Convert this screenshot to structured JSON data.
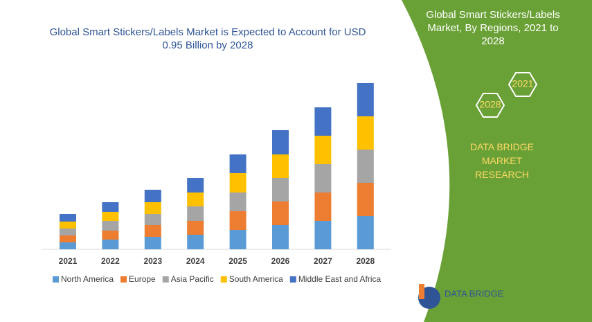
{
  "chart_data": {
    "type": "bar",
    "stacked": true,
    "title": "Global Smart Stickers/Labels Market is Expected to Account for USD 0.95 Billion by 2028",
    "categories": [
      "2021",
      "2022",
      "2023",
      "2024",
      "2025",
      "2026",
      "2027",
      "2028"
    ],
    "series": [
      {
        "name": "North America",
        "color": "#5b9bd5",
        "values": [
          10,
          14,
          18,
          21,
          28,
          35,
          41,
          48
        ]
      },
      {
        "name": "Europe",
        "color": "#ed7d31",
        "values": [
          10,
          13,
          17,
          20,
          27,
          34,
          41,
          48
        ]
      },
      {
        "name": "Asia Pacific",
        "color": "#a5a5a5",
        "values": [
          10,
          14,
          16,
          21,
          27,
          34,
          41,
          48
        ]
      },
      {
        "name": "South America",
        "color": "#ffc000",
        "values": [
          10,
          13,
          17,
          20,
          28,
          34,
          41,
          48
        ]
      },
      {
        "name": "Middle East and Africa",
        "color": "#4472c4",
        "values": [
          11,
          14,
          18,
          21,
          27,
          35,
          41,
          48
        ]
      }
    ],
    "ylim": [
      0,
      240
    ]
  },
  "panel": {
    "title": "Global Smart Stickers/Labels Market, By Regions, 2021 to 2028",
    "hex_start": "2021",
    "hex_end": "2028",
    "brand": "DATA BRIDGE MARKET RESEARCH"
  },
  "logo": "DATA BRIDGE"
}
